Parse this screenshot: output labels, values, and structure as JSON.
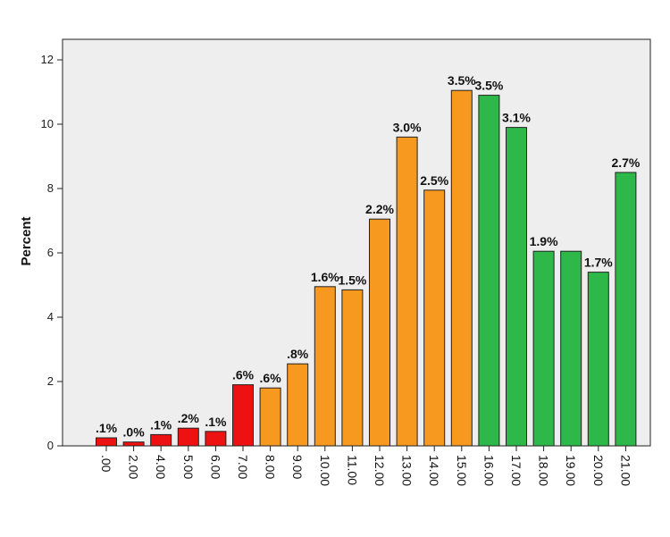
{
  "colors": {
    "background": "#ffffff",
    "plot_area": "#eeeeee",
    "red": "#ee1111",
    "orange": "#f7981f",
    "green": "#2fb84a",
    "outline": "#222222"
  },
  "chart_data": {
    "type": "bar",
    "title": "",
    "xlabel": "",
    "ylabel": "Percent",
    "ylim": [
      0,
      13
    ],
    "yticks": [
      0,
      2,
      4,
      6,
      8,
      10,
      12
    ],
    "grid": false,
    "categories": [
      ".00",
      "2.00",
      "4.00",
      "5.00",
      "6.00",
      "7.00",
      "8.00",
      "9.00",
      "10.00",
      "11.00",
      "12.00",
      "13.00",
      "14.00",
      "15.00",
      "16.00",
      "17.00",
      "18.00",
      "19.00",
      "20.00",
      "21.00"
    ],
    "values": [
      0.25,
      0.12,
      0.35,
      0.55,
      0.45,
      1.9,
      1.8,
      2.55,
      4.95,
      4.85,
      7.05,
      9.6,
      7.95,
      11.05,
      10.9,
      9.9,
      6.05,
      6.05,
      5.4,
      8.5
    ],
    "bar_colors": [
      "red",
      "red",
      "red",
      "red",
      "red",
      "red",
      "orange",
      "orange",
      "orange",
      "orange",
      "orange",
      "orange",
      "orange",
      "orange",
      "green",
      "green",
      "green",
      "green",
      "green",
      "green"
    ],
    "data_labels": [
      ".1%",
      ".0%",
      ".1%",
      ".2%",
      ".1%",
      ".6%",
      ".6%",
      ".8%",
      "1.6%",
      "1.5%",
      "2.2%",
      "3.0%",
      "2.5%",
      "3.5%",
      "3.5%",
      "3.1%",
      "1.9%",
      "",
      "1.7%",
      "2.7%"
    ]
  }
}
